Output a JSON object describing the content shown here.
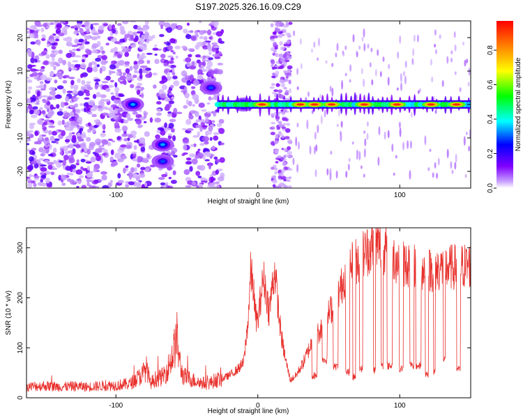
{
  "figure": {
    "title": "S197.2025.326.16.09.C29"
  },
  "colors": {
    "snr_line": "#e8302c",
    "axes": "#000000",
    "background": "#ffffff",
    "colorbar_stops": [
      "#ffffff",
      "#8000ff",
      "#0000ff",
      "#00ffff",
      "#00ff00",
      "#ffff00",
      "#ff8000",
      "#ff0000"
    ]
  },
  "chart_data": [
    {
      "type": "heatmap",
      "name": "spectrogram",
      "xlabel": "Height of straight line (km)",
      "ylabel": "Frequency (Hz)",
      "xlim": [
        -163,
        150
      ],
      "ylim": [
        -25,
        25
      ],
      "xticks": [
        -100,
        0,
        100
      ],
      "yticks": [
        -20,
        -10,
        0,
        10,
        20
      ],
      "colorbar": {
        "label": "Normalized spectral amplitude",
        "range": [
          0,
          0.97
        ],
        "ticks": [
          "0.0",
          "0.2",
          "0.4",
          "0.6",
          "0.8"
        ]
      },
      "features": {
        "main_line": {
          "freq_hz": 0,
          "x_range_km": [
            -28,
            150
          ],
          "peak_centers_km": [
            3,
            30,
            40,
            52,
            75,
            98,
            122,
            140
          ]
        },
        "early_blobs": [
          {
            "x_km": -88,
            "y_hz": 0,
            "amp": 0.25
          },
          {
            "x_km": -67,
            "y_hz": -12,
            "amp": 0.25
          },
          {
            "x_km": -67,
            "y_hz": -17,
            "amp": 0.2
          },
          {
            "x_km": -33,
            "y_hz": 5,
            "amp": 0.2
          },
          {
            "x_km": -10,
            "y_hz": 0,
            "amp": 0.45
          }
        ],
        "noise_region_km": [
          -163,
          -25
        ],
        "clear_bands_km": [
          [
            -77,
            -70
          ],
          [
            -58,
            -52
          ],
          [
            -22,
            10
          ],
          [
            22,
            150
          ]
        ],
        "noise_column_km": [
          10,
          23
        ]
      }
    },
    {
      "type": "line",
      "name": "snr",
      "xlabel": "Height of straight line (km)",
      "ylabel": "SNR (10 * v/v)",
      "xlim": [
        -163,
        150
      ],
      "ylim": [
        0,
        340
      ],
      "xticks": [
        -100,
        0,
        100
      ],
      "yticks": [
        0,
        100,
        200,
        300
      ],
      "series": [
        {
          "name": "SNR",
          "x": [
            -163,
            -150,
            -140,
            -130,
            -120,
            -110,
            -100,
            -90,
            -82,
            -78,
            -76,
            -72,
            -68,
            -64,
            -60,
            -57,
            -55,
            -53,
            -50,
            -45,
            -40,
            -35,
            -30,
            -25,
            -20,
            -15,
            -10,
            -7,
            -5,
            -3,
            -2,
            0,
            2,
            4,
            6,
            8,
            10,
            12,
            15,
            17,
            20,
            23,
            27,
            32,
            38,
            45,
            52,
            58,
            62,
            66,
            70,
            75,
            80,
            85,
            90,
            95,
            100,
            110,
            120,
            130,
            140,
            150
          ],
          "values": [
            22,
            24,
            22,
            23,
            22,
            24,
            25,
            28,
            45,
            60,
            28,
            38,
            40,
            55,
            85,
            120,
            70,
            45,
            40,
            35,
            30,
            28,
            35,
            38,
            45,
            55,
            70,
            150,
            250,
            220,
            170,
            150,
            200,
            240,
            210,
            170,
            220,
            255,
            160,
            115,
            70,
            35,
            45,
            70,
            110,
            140,
            180,
            215,
            250,
            265,
            275,
            290,
            300,
            305,
            295,
            285,
            270,
            265,
            255,
            260,
            262,
            265
          ]
        }
      ]
    }
  ]
}
